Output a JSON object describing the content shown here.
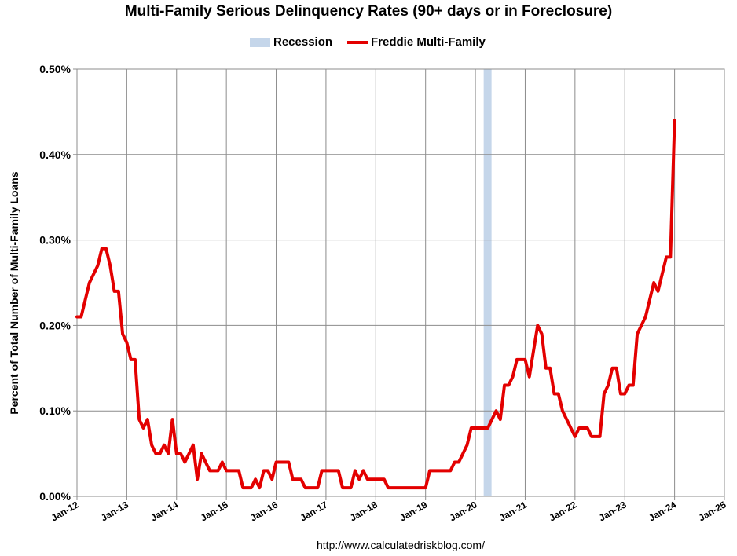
{
  "chart_data": {
    "type": "line",
    "title": "Multi-Family Serious Delinquency Rates (90+ days or in Foreclosure)",
    "ylabel": "Percent of Total Number of Multi-Family Loans",
    "xlabel": "",
    "source": "http://www.calculatedriskblog.com/",
    "ylim": [
      0,
      0.5
    ],
    "yticks": [
      "0.00%",
      "0.10%",
      "0.20%",
      "0.30%",
      "0.40%",
      "0.50%"
    ],
    "xticks": [
      "Jan-12",
      "Jan-13",
      "Jan-14",
      "Jan-15",
      "Jan-16",
      "Jan-17",
      "Jan-18",
      "Jan-19",
      "Jan-20",
      "Jan-21",
      "Jan-22",
      "Jan-23",
      "Jan-24",
      "Jan-25"
    ],
    "xlim": [
      "2012-01",
      "2025-01"
    ],
    "grid": true,
    "legend_position": "top-center",
    "legend": [
      {
        "name": "Recession",
        "kind": "band",
        "color": "#c5d6ea"
      },
      {
        "name": "Freddie Multi-Family",
        "kind": "line",
        "color": "#e30000"
      }
    ],
    "recession": {
      "start": "2020-03",
      "end": "2020-04"
    },
    "series": [
      {
        "name": "Freddie Multi-Family",
        "color": "#e30000",
        "points": [
          [
            "2012-01",
            0.21
          ],
          [
            "2012-02",
            0.21
          ],
          [
            "2012-03",
            0.23
          ],
          [
            "2012-04",
            0.25
          ],
          [
            "2012-05",
            0.26
          ],
          [
            "2012-06",
            0.27
          ],
          [
            "2012-07",
            0.29
          ],
          [
            "2012-08",
            0.29
          ],
          [
            "2012-09",
            0.27
          ],
          [
            "2012-10",
            0.24
          ],
          [
            "2012-11",
            0.24
          ],
          [
            "2012-12",
            0.19
          ],
          [
            "2013-01",
            0.18
          ],
          [
            "2013-02",
            0.16
          ],
          [
            "2013-03",
            0.16
          ],
          [
            "2013-04",
            0.09
          ],
          [
            "2013-05",
            0.08
          ],
          [
            "2013-06",
            0.09
          ],
          [
            "2013-07",
            0.06
          ],
          [
            "2013-08",
            0.05
          ],
          [
            "2013-09",
            0.05
          ],
          [
            "2013-10",
            0.06
          ],
          [
            "2013-11",
            0.05
          ],
          [
            "2013-12",
            0.09
          ],
          [
            "2014-01",
            0.05
          ],
          [
            "2014-02",
            0.05
          ],
          [
            "2014-03",
            0.04
          ],
          [
            "2014-04",
            0.05
          ],
          [
            "2014-05",
            0.06
          ],
          [
            "2014-06",
            0.02
          ],
          [
            "2014-07",
            0.05
          ],
          [
            "2014-08",
            0.04
          ],
          [
            "2014-09",
            0.03
          ],
          [
            "2014-10",
            0.03
          ],
          [
            "2014-11",
            0.03
          ],
          [
            "2014-12",
            0.04
          ],
          [
            "2015-01",
            0.03
          ],
          [
            "2015-02",
            0.03
          ],
          [
            "2015-03",
            0.03
          ],
          [
            "2015-04",
            0.03
          ],
          [
            "2015-05",
            0.01
          ],
          [
            "2015-06",
            0.01
          ],
          [
            "2015-07",
            0.01
          ],
          [
            "2015-08",
            0.02
          ],
          [
            "2015-09",
            0.01
          ],
          [
            "2015-10",
            0.03
          ],
          [
            "2015-11",
            0.03
          ],
          [
            "2015-12",
            0.02
          ],
          [
            "2016-01",
            0.04
          ],
          [
            "2016-02",
            0.04
          ],
          [
            "2016-03",
            0.04
          ],
          [
            "2016-04",
            0.04
          ],
          [
            "2016-05",
            0.02
          ],
          [
            "2016-06",
            0.02
          ],
          [
            "2016-07",
            0.02
          ],
          [
            "2016-08",
            0.01
          ],
          [
            "2016-09",
            0.01
          ],
          [
            "2016-10",
            0.01
          ],
          [
            "2016-11",
            0.01
          ],
          [
            "2016-12",
            0.03
          ],
          [
            "2017-01",
            0.03
          ],
          [
            "2017-02",
            0.03
          ],
          [
            "2017-03",
            0.03
          ],
          [
            "2017-04",
            0.03
          ],
          [
            "2017-05",
            0.01
          ],
          [
            "2017-06",
            0.01
          ],
          [
            "2017-07",
            0.01
          ],
          [
            "2017-08",
            0.03
          ],
          [
            "2017-09",
            0.02
          ],
          [
            "2017-10",
            0.03
          ],
          [
            "2017-11",
            0.02
          ],
          [
            "2017-12",
            0.02
          ],
          [
            "2018-01",
            0.02
          ],
          [
            "2018-02",
            0.02
          ],
          [
            "2018-03",
            0.02
          ],
          [
            "2018-04",
            0.01
          ],
          [
            "2018-05",
            0.01
          ],
          [
            "2018-06",
            0.01
          ],
          [
            "2018-07",
            0.01
          ],
          [
            "2018-08",
            0.01
          ],
          [
            "2018-09",
            0.01
          ],
          [
            "2018-10",
            0.01
          ],
          [
            "2018-11",
            0.01
          ],
          [
            "2018-12",
            0.01
          ],
          [
            "2019-01",
            0.01
          ],
          [
            "2019-02",
            0.03
          ],
          [
            "2019-03",
            0.03
          ],
          [
            "2019-04",
            0.03
          ],
          [
            "2019-05",
            0.03
          ],
          [
            "2019-06",
            0.03
          ],
          [
            "2019-07",
            0.03
          ],
          [
            "2019-08",
            0.04
          ],
          [
            "2019-09",
            0.04
          ],
          [
            "2019-10",
            0.05
          ],
          [
            "2019-11",
            0.06
          ],
          [
            "2019-12",
            0.08
          ],
          [
            "2020-01",
            0.08
          ],
          [
            "2020-02",
            0.08
          ],
          [
            "2020-03",
            0.08
          ],
          [
            "2020-04",
            0.08
          ],
          [
            "2020-05",
            0.09
          ],
          [
            "2020-06",
            0.1
          ],
          [
            "2020-07",
            0.09
          ],
          [
            "2020-08",
            0.13
          ],
          [
            "2020-09",
            0.13
          ],
          [
            "2020-10",
            0.14
          ],
          [
            "2020-11",
            0.16
          ],
          [
            "2020-12",
            0.16
          ],
          [
            "2021-01",
            0.16
          ],
          [
            "2021-02",
            0.14
          ],
          [
            "2021-03",
            0.17
          ],
          [
            "2021-04",
            0.2
          ],
          [
            "2021-05",
            0.19
          ],
          [
            "2021-06",
            0.15
          ],
          [
            "2021-07",
            0.15
          ],
          [
            "2021-08",
            0.12
          ],
          [
            "2021-09",
            0.12
          ],
          [
            "2021-10",
            0.1
          ],
          [
            "2021-11",
            0.09
          ],
          [
            "2021-12",
            0.08
          ],
          [
            "2022-01",
            0.07
          ],
          [
            "2022-02",
            0.08
          ],
          [
            "2022-03",
            0.08
          ],
          [
            "2022-04",
            0.08
          ],
          [
            "2022-05",
            0.07
          ],
          [
            "2022-06",
            0.07
          ],
          [
            "2022-07",
            0.07
          ],
          [
            "2022-08",
            0.12
          ],
          [
            "2022-09",
            0.13
          ],
          [
            "2022-10",
            0.15
          ],
          [
            "2022-11",
            0.15
          ],
          [
            "2022-12",
            0.12
          ],
          [
            "2023-01",
            0.12
          ],
          [
            "2023-02",
            0.13
          ],
          [
            "2023-03",
            0.13
          ],
          [
            "2023-04",
            0.19
          ],
          [
            "2023-05",
            0.2
          ],
          [
            "2023-06",
            0.21
          ],
          [
            "2023-07",
            0.23
          ],
          [
            "2023-08",
            0.25
          ],
          [
            "2023-09",
            0.24
          ],
          [
            "2023-10",
            0.26
          ],
          [
            "2023-11",
            0.28
          ],
          [
            "2023-12",
            0.28
          ],
          [
            "2024-01",
            0.44
          ]
        ]
      }
    ]
  }
}
